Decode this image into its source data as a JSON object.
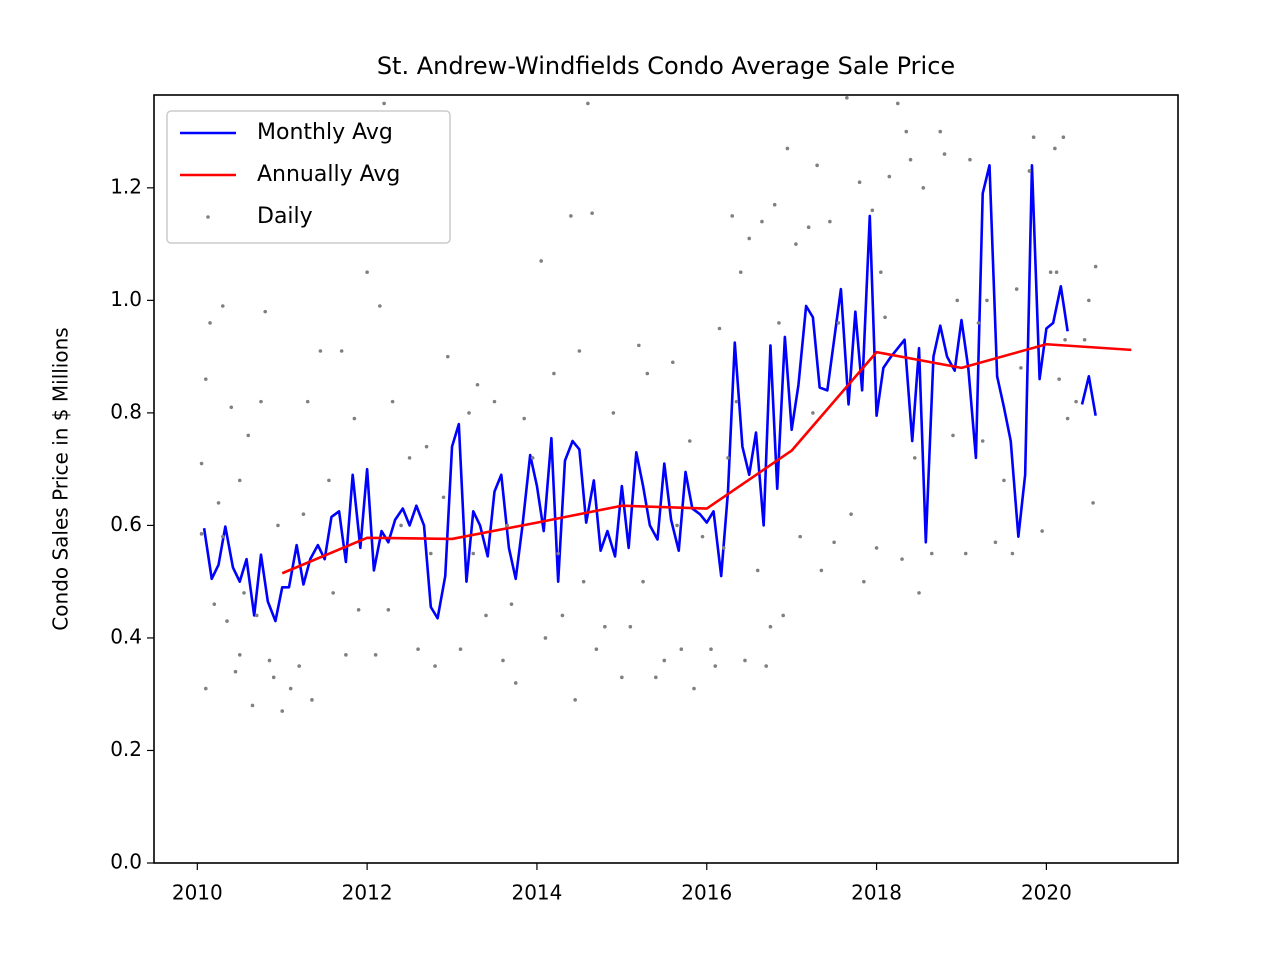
{
  "chart_data": {
    "type": "line",
    "title": "St. Andrew-Windfields Condo Average Sale Price",
    "y_label": "Condo Sales Price in $ Millions",
    "xlim": [
      2009.49,
      2021.55
    ],
    "ylim": [
      0,
      1.365
    ],
    "xticks": [
      2010,
      2012,
      2014,
      2016,
      2018,
      2020
    ],
    "yticks": [
      {
        "value": 0,
        "label": "0.0"
      },
      0.2,
      0.4,
      0.6,
      0.8,
      {
        "value": 1,
        "label": "1.0"
      },
      1.2
    ],
    "legend": "upper left",
    "series": [
      {
        "name": "Monthly Avg",
        "color": "#0000ff",
        "style": "line",
        "x": [
          2010.08,
          2010.17,
          2010.25,
          2010.33,
          2010.42,
          2010.5,
          2010.58,
          2010.67,
          2010.75,
          2010.83,
          2010.92,
          2011.0,
          2011.08,
          2011.17,
          2011.25,
          2011.33,
          2011.42,
          2011.5,
          2011.58,
          2011.67,
          2011.75,
          2011.83,
          2011.92,
          2012.0,
          2012.08,
          2012.17,
          2012.25,
          2012.33,
          2012.42,
          2012.5,
          2012.58,
          2012.67,
          2012.75,
          2012.83,
          2012.92,
          2013.0,
          2013.08,
          2013.17,
          2013.25,
          2013.33,
          2013.42,
          2013.5,
          2013.58,
          2013.67,
          2013.75,
          2013.83,
          2013.92,
          2014.0,
          2014.08,
          2014.17,
          2014.25,
          2014.33,
          2014.42,
          2014.5,
          2014.58,
          2014.67,
          2014.75,
          2014.83,
          2014.92,
          2015.0,
          2015.08,
          2015.17,
          2015.25,
          2015.33,
          2015.42,
          2015.5,
          2015.58,
          2015.67,
          2015.75,
          2015.83,
          2015.92,
          2016.0,
          2016.08,
          2016.17,
          2016.25,
          2016.33,
          2016.42,
          2016.5,
          2016.58,
          2016.67,
          2016.75,
          2016.83,
          2016.92,
          2017.0,
          2017.08,
          2017.17,
          2017.25,
          2017.33,
          2017.42,
          2017.5,
          2017.58,
          2017.67,
          2017.75,
          2017.83,
          2017.92,
          2018.0,
          2018.08,
          2018.17,
          2018.25,
          2018.33,
          2018.42,
          2018.5,
          2018.58,
          2018.67,
          2018.75,
          2018.83,
          2018.92,
          2019.0,
          2019.08,
          2019.17,
          2019.25,
          2019.33,
          2019.42,
          2019.5,
          2019.58,
          2019.67,
          2019.75,
          2019.83,
          2019.92,
          2020.0,
          2020.08,
          2020.17,
          2020.25,
          2020.33,
          2020.42,
          2020.5,
          2020.58
        ],
        "values": [
          0.595,
          0.505,
          0.53,
          0.598,
          0.525,
          0.5,
          0.54,
          0.44,
          0.548,
          0.465,
          0.43,
          0.49,
          0.49,
          0.565,
          0.495,
          0.54,
          0.565,
          0.54,
          0.615,
          0.625,
          0.535,
          0.69,
          0.56,
          0.7,
          0.52,
          0.59,
          0.57,
          0.61,
          0.63,
          0.6,
          0.635,
          0.6,
          0.455,
          0.435,
          0.51,
          0.74,
          0.78,
          0.5,
          0.625,
          0.6,
          0.545,
          0.66,
          0.69,
          0.56,
          0.505,
          0.6,
          0.725,
          0.67,
          0.59,
          0.755,
          0.5,
          0.715,
          0.75,
          0.735,
          0.605,
          0.68,
          0.555,
          0.59,
          0.545,
          0.67,
          0.56,
          0.73,
          0.67,
          0.6,
          0.575,
          0.71,
          0.61,
          0.555,
          0.695,
          0.63,
          0.62,
          0.605,
          0.625,
          0.51,
          0.66,
          0.925,
          0.74,
          0.69,
          0.765,
          0.6,
          0.92,
          0.665,
          0.935,
          0.77,
          0.85,
          0.99,
          0.97,
          0.845,
          0.84,
          0.93,
          1.02,
          0.815,
          0.98,
          0.84,
          1.15,
          0.795,
          0.88,
          0.9,
          0.915,
          0.93,
          0.75,
          0.915,
          0.57,
          0.9,
          0.955,
          0.9,
          0.875,
          0.965,
          0.88,
          0.72,
          1.19,
          1.24,
          0.865,
          0.81,
          0.75,
          0.58,
          0.69,
          1.24,
          0.86,
          0.95,
          0.96,
          1.025,
          0.945,
          null,
          0.815,
          0.865,
          0.795
        ]
      },
      {
        "name": "Annually Avg",
        "color": "#ff0000",
        "style": "line",
        "x": [
          2011,
          2012,
          2013,
          2014,
          2015,
          2016,
          2017,
          2018,
          2019,
          2020,
          2021
        ],
        "values": [
          0.515,
          0.578,
          0.576,
          0.605,
          0.635,
          0.63,
          0.733,
          0.908,
          0.88,
          0.922,
          0.912
        ]
      },
      {
        "name": "Daily",
        "color": "#808080",
        "style": "points",
        "x": [
          2010.05,
          2010.1,
          2010.1,
          2010.15,
          2010.2,
          2010.25,
          2010.3,
          2010.35,
          2010.4,
          2010.45,
          2010.5,
          2010.55,
          2010.6,
          2010.65,
          2010.75,
          2010.8,
          2010.85,
          2010.9,
          2010.95,
          2011.0,
          2010.05,
          2010.3,
          2010.5,
          2010.7,
          2011.1,
          2011.2,
          2011.3,
          2011.35,
          2011.45,
          2011.55,
          2011.7,
          2011.75,
          2011.85,
          2011.9,
          2011.6,
          2011.25,
          2012.0,
          2012.1,
          2012.15,
          2012.2,
          2012.3,
          2012.4,
          2012.5,
          2012.6,
          2012.7,
          2012.8,
          2012.9,
          2012.95,
          2012.25,
          2012.75,
          2013.1,
          2013.2,
          2013.3,
          2013.4,
          2013.5,
          2013.6,
          2013.7,
          2013.75,
          2013.85,
          2013.95,
          2013.25,
          2013.65,
          2014.05,
          2014.1,
          2014.2,
          2014.3,
          2014.4,
          2014.45,
          2014.5,
          2014.6,
          2014.65,
          2014.7,
          2014.8,
          2014.9,
          2014.25,
          2014.55,
          2015.0,
          2015.1,
          2015.2,
          2015.3,
          2015.4,
          2015.5,
          2015.6,
          2015.7,
          2015.8,
          2015.85,
          2015.95,
          2015.25,
          2015.65,
          2016.05,
          2016.1,
          2016.15,
          2016.25,
          2016.3,
          2016.35,
          2016.4,
          2016.45,
          2016.5,
          2016.6,
          2016.65,
          2016.75,
          2016.8,
          2016.85,
          2016.9,
          2016.95,
          2016.2,
          2016.7,
          2017.05,
          2017.1,
          2017.2,
          2017.3,
          2017.35,
          2017.45,
          2017.5,
          2017.55,
          2017.65,
          2017.7,
          2017.8,
          2017.95,
          2017.25,
          2017.85,
          2018.0,
          2018.05,
          2018.1,
          2018.15,
          2018.25,
          2018.3,
          2018.35,
          2018.4,
          2018.5,
          2018.55,
          2018.65,
          2018.75,
          2018.8,
          2018.9,
          2018.95,
          2018.45,
          2019.05,
          2019.1,
          2019.2,
          2019.3,
          2019.4,
          2019.5,
          2019.6,
          2019.7,
          2019.8,
          2019.85,
          2019.95,
          2019.25,
          2019.65,
          2020.05,
          2020.1,
          2020.15,
          2020.2,
          2020.25,
          2020.35,
          2020.45,
          2020.5,
          2020.55,
          2020.58,
          2020.12,
          2020.22
        ],
        "values": [
          0.585,
          0.31,
          0.86,
          0.96,
          0.46,
          0.64,
          0.99,
          0.43,
          0.81,
          0.34,
          0.68,
          0.48,
          0.76,
          0.28,
          0.82,
          0.98,
          0.36,
          0.33,
          0.6,
          0.27,
          0.71,
          0.58,
          0.37,
          0.44,
          0.31,
          0.35,
          0.82,
          0.29,
          0.91,
          0.68,
          0.91,
          0.37,
          0.79,
          0.45,
          0.48,
          0.62,
          1.05,
          0.37,
          0.99,
          1.35,
          0.82,
          0.6,
          0.72,
          0.38,
          0.74,
          0.35,
          0.65,
          0.9,
          0.45,
          0.55,
          0.38,
          0.8,
          0.85,
          0.44,
          0.82,
          0.36,
          0.46,
          0.32,
          0.79,
          0.72,
          0.55,
          0.6,
          1.07,
          0.4,
          0.87,
          0.44,
          1.15,
          0.29,
          0.91,
          1.35,
          1.155,
          0.38,
          0.42,
          0.8,
          0.55,
          0.5,
          0.33,
          0.42,
          0.92,
          0.87,
          0.33,
          0.36,
          0.89,
          0.38,
          0.75,
          0.31,
          0.58,
          0.5,
          0.6,
          0.38,
          0.35,
          0.95,
          0.72,
          1.15,
          0.82,
          1.05,
          0.36,
          1.11,
          0.52,
          1.14,
          0.42,
          1.17,
          0.96,
          0.44,
          1.27,
          0.56,
          0.35,
          1.1,
          0.58,
          1.13,
          1.24,
          0.52,
          1.14,
          0.57,
          0.96,
          1.36,
          0.62,
          1.21,
          1.16,
          0.8,
          0.5,
          0.56,
          1.05,
          0.97,
          1.22,
          1.35,
          0.54,
          1.3,
          1.25,
          0.48,
          1.2,
          0.55,
          1.3,
          1.26,
          0.76,
          1.0,
          0.72,
          0.55,
          1.25,
          0.96,
          1.0,
          0.57,
          0.68,
          0.55,
          0.88,
          1.23,
          1.29,
          0.59,
          0.75,
          1.02,
          1.05,
          1.27,
          0.86,
          1.29,
          0.79,
          0.82,
          0.93,
          1.0,
          0.64,
          1.06,
          1.05,
          0.93
        ]
      }
    ]
  }
}
